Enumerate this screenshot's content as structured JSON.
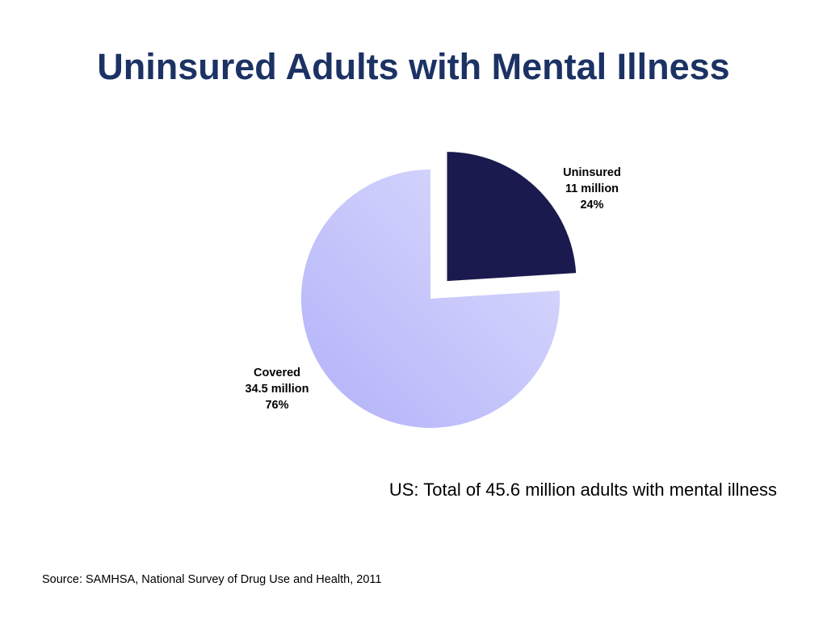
{
  "chart_data": {
    "type": "pie",
    "title": "Uninsured Adults with Mental Illness",
    "categories": [
      "Uninsured",
      "Covered"
    ],
    "amount_labels": [
      "11 million",
      "34.5 million"
    ],
    "values": [
      24,
      76
    ],
    "value_labels": [
      "24%",
      "76%"
    ],
    "colors": [
      "#1b1a4e",
      "#b2b2fa"
    ],
    "exploded": [
      true,
      false
    ],
    "subtitle": "US: Total of 45.6 million adults with mental illness",
    "source": "Source: SAMHSA, National Survey of Drug Use and Health, 2011"
  }
}
